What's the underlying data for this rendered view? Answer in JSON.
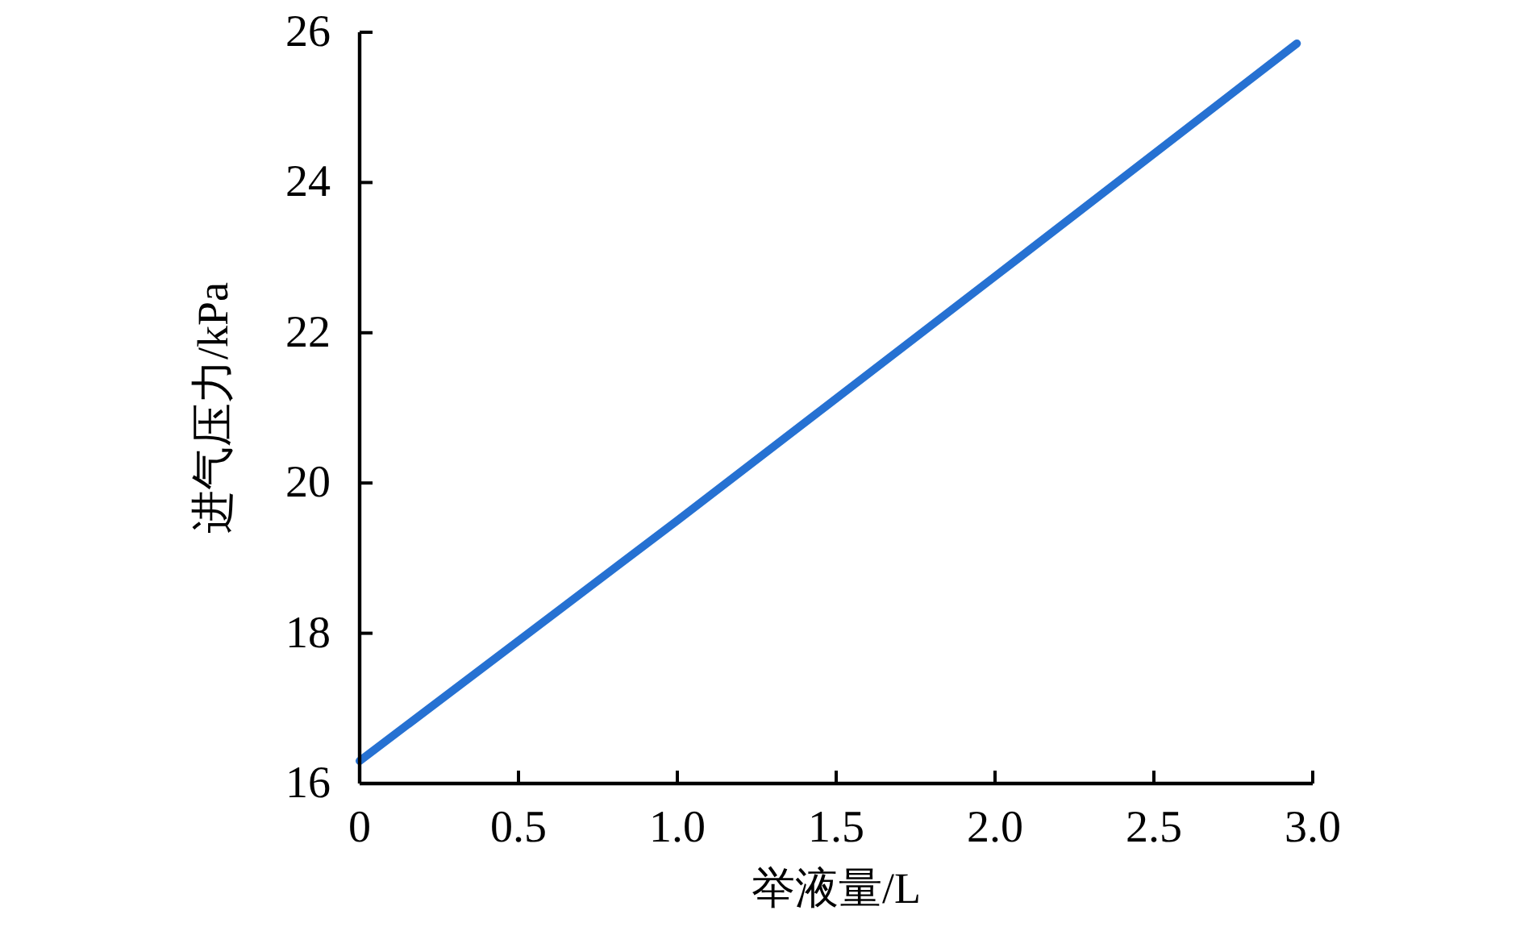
{
  "chart_data": {
    "type": "line",
    "xlabel": "举液量/L",
    "ylabel": "进气压力/kPa",
    "x": [
      0,
      1.0,
      2.0,
      2.95
    ],
    "series": [
      {
        "color": "#2671d2",
        "values": [
          16.3,
          19.5,
          22.75,
          25.85
        ]
      }
    ],
    "xlim": [
      0,
      3.0
    ],
    "xticks": [
      0,
      {
        "value": 0.5,
        "label": "0.5"
      },
      {
        "value": 1.0,
        "label": "1.0"
      },
      {
        "value": 1.5,
        "label": "1.5"
      },
      {
        "value": 2.0,
        "label": "2.0"
      },
      {
        "value": 2.5,
        "label": "2.5"
      },
      {
        "value": 3.0,
        "label": "3.0"
      }
    ],
    "ylim": [
      16,
      26
    ],
    "yticks": [
      16,
      18,
      20,
      22,
      24,
      26
    ],
    "grid": false,
    "marker": "none",
    "line_style": "solid"
  }
}
